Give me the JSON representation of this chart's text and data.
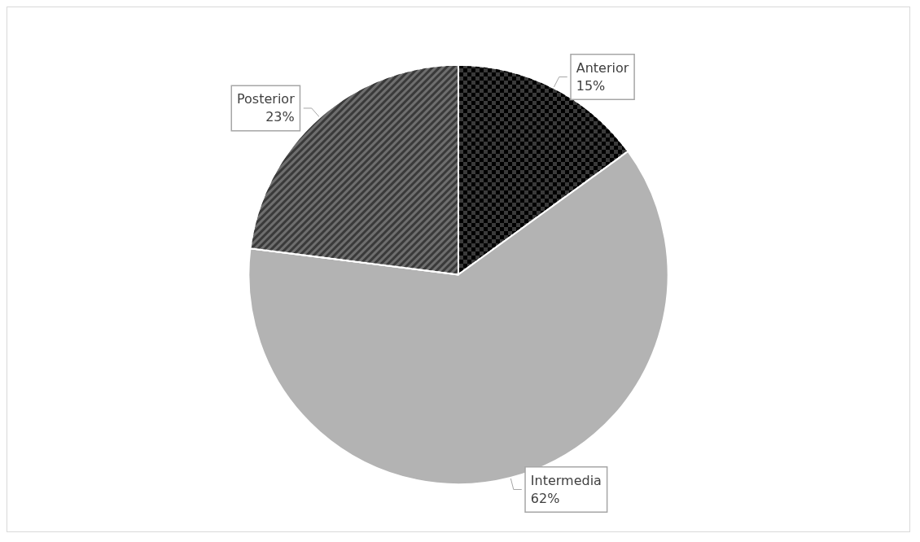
{
  "chart_data": {
    "type": "pie",
    "categories": [
      "Anterior",
      "Intermedia",
      "Posterior"
    ],
    "values": [
      15,
      62,
      23
    ],
    "colors": [
      "#3a3a3a",
      "#b3b3b3",
      "#6e6e6e"
    ],
    "value_labels": [
      "15%",
      "62%",
      "23%"
    ],
    "legend": false
  }
}
